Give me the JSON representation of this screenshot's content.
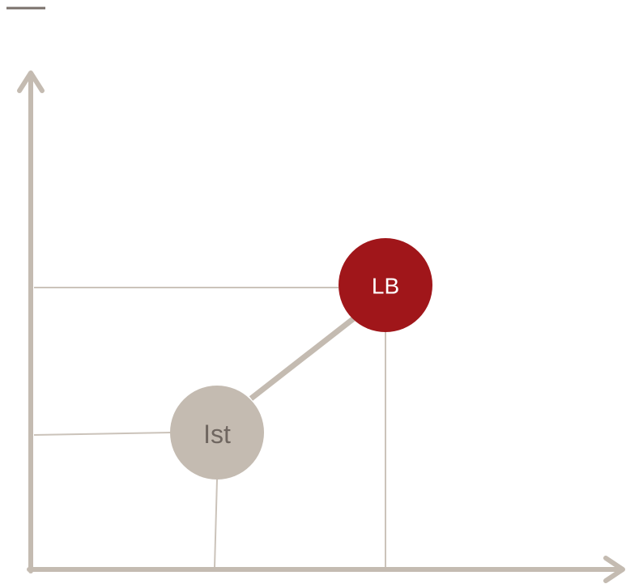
{
  "nodes": [
    {
      "label": "Ist"
    },
    {
      "label": "LB"
    }
  ]
}
